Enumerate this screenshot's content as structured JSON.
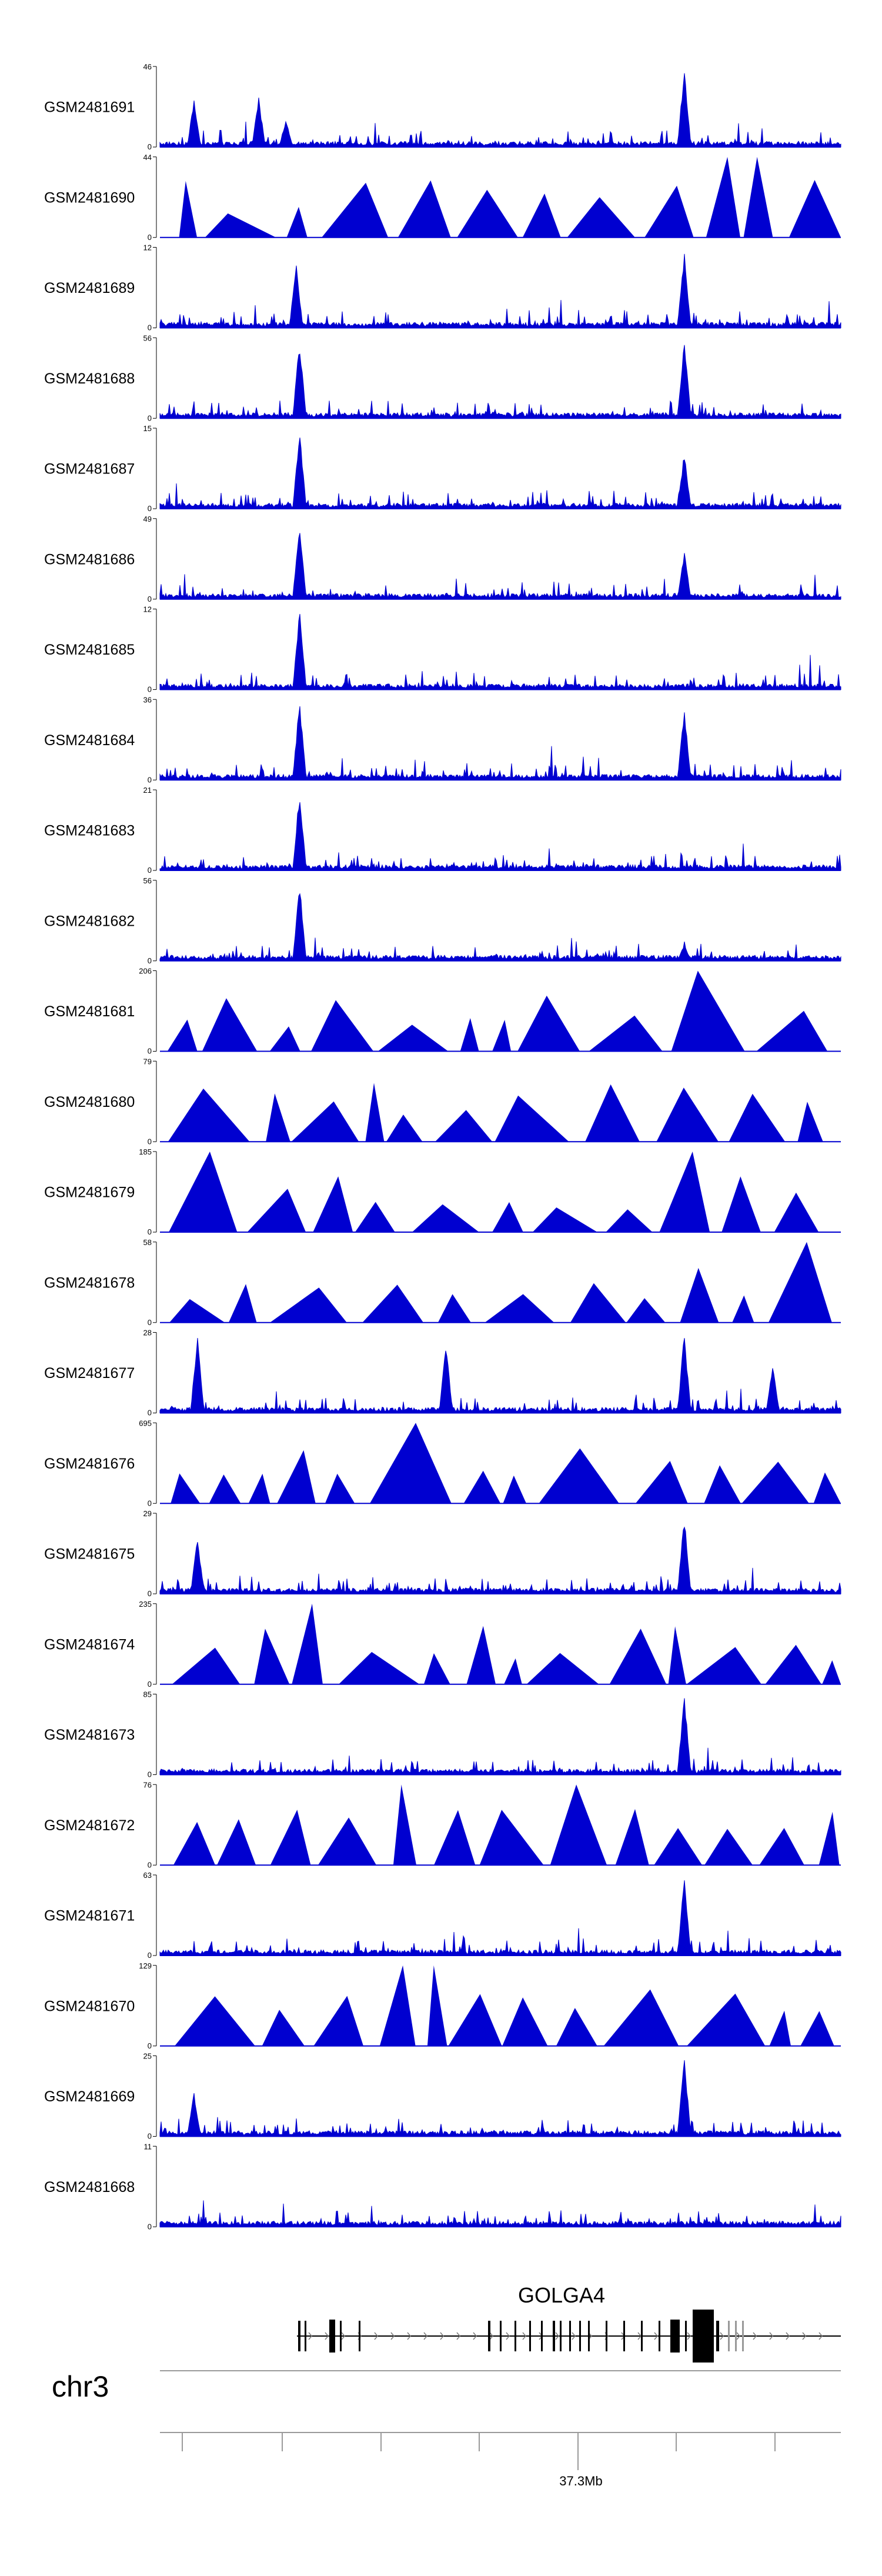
{
  "chart_data": {
    "type": "area",
    "title": "",
    "track_color": "#0000d0",
    "tracks": [
      {
        "name": "GSM2481691",
        "ymax": 46,
        "ymin": 0,
        "style": "signal",
        "peaks": [
          {
            "x": 0.05,
            "h": 0.6
          },
          {
            "x": 0.145,
            "h": 0.62
          },
          {
            "x": 0.185,
            "h": 0.35
          },
          {
            "x": 0.77,
            "h": 1.0
          }
        ]
      },
      {
        "name": "GSM2481690",
        "ymax": 44,
        "ymin": 0,
        "style": "triangles",
        "peaks": [
          {
            "x": 0.845,
            "h": 1.0
          }
        ]
      },
      {
        "name": "GSM2481689",
        "ymax": 12,
        "ymin": 0,
        "style": "signal",
        "peaks": [
          {
            "x": 0.2,
            "h": 0.8
          },
          {
            "x": 0.77,
            "h": 0.95
          }
        ]
      },
      {
        "name": "GSM2481688",
        "ymax": 56,
        "ymin": 0,
        "style": "signal",
        "peaks": [
          {
            "x": 0.205,
            "h": 0.98
          },
          {
            "x": 0.77,
            "h": 1.0
          }
        ]
      },
      {
        "name": "GSM2481687",
        "ymax": 15,
        "ymin": 0,
        "style": "signal",
        "peaks": [
          {
            "x": 0.205,
            "h": 1.0
          },
          {
            "x": 0.77,
            "h": 0.7
          }
        ]
      },
      {
        "name": "GSM2481686",
        "ymax": 49,
        "ymin": 0,
        "style": "signal",
        "peaks": [
          {
            "x": 0.205,
            "h": 1.0
          },
          {
            "x": 0.77,
            "h": 0.6
          }
        ]
      },
      {
        "name": "GSM2481685",
        "ymax": 12,
        "ymin": 0,
        "style": "signal",
        "peaks": [
          {
            "x": 0.205,
            "h": 1.0
          }
        ]
      },
      {
        "name": "GSM2481684",
        "ymax": 36,
        "ymin": 0,
        "style": "signal",
        "peaks": [
          {
            "x": 0.205,
            "h": 1.0
          },
          {
            "x": 0.77,
            "h": 0.9
          }
        ]
      },
      {
        "name": "GSM2481683",
        "ymax": 21,
        "ymin": 0,
        "style": "signal",
        "peaks": [
          {
            "x": 0.205,
            "h": 1.0
          }
        ]
      },
      {
        "name": "GSM2481682",
        "ymax": 56,
        "ymin": 0,
        "style": "signal",
        "peaks": [
          {
            "x": 0.205,
            "h": 1.0
          },
          {
            "x": 0.77,
            "h": 0.2
          }
        ]
      },
      {
        "name": "GSM2481681",
        "ymax": 206,
        "ymin": 0,
        "style": "triangles",
        "peaks": [
          {
            "x": 0.77,
            "h": 1.0
          },
          {
            "x": 0.91,
            "h": 0.65
          }
        ]
      },
      {
        "name": "GSM2481680",
        "ymax": 79,
        "ymin": 0,
        "style": "triangles",
        "peaks": [
          {
            "x": 0.615,
            "h": 1.0
          }
        ]
      },
      {
        "name": "GSM2481679",
        "ymax": 185,
        "ymin": 0,
        "style": "triangles",
        "peaks": [
          {
            "x": 0.06,
            "h": 1.0
          },
          {
            "x": 0.77,
            "h": 1.0
          }
        ]
      },
      {
        "name": "GSM2481678",
        "ymax": 58,
        "ymin": 0,
        "style": "triangles",
        "peaks": [
          {
            "x": 0.92,
            "h": 1.0
          },
          {
            "x": 0.945,
            "h": 1.0
          }
        ]
      },
      {
        "name": "GSM2481677",
        "ymax": 28,
        "ymin": 0,
        "style": "signal",
        "peaks": [
          {
            "x": 0.055,
            "h": 1.0
          },
          {
            "x": 0.42,
            "h": 0.9
          },
          {
            "x": 0.77,
            "h": 1.0
          },
          {
            "x": 0.9,
            "h": 0.6
          }
        ]
      },
      {
        "name": "GSM2481676",
        "ymax": 695,
        "ymin": 0,
        "style": "triangles",
        "peaks": [
          {
            "x": 0.41,
            "h": 1.0
          }
        ]
      },
      {
        "name": "GSM2481675",
        "ymax": 29,
        "ymin": 0,
        "style": "signal",
        "peaks": [
          {
            "x": 0.055,
            "h": 0.7
          },
          {
            "x": 0.77,
            "h": 1.0
          }
        ]
      },
      {
        "name": "GSM2481674",
        "ymax": 235,
        "ymin": 0,
        "style": "triangles",
        "peaks": [
          {
            "x": 0.22,
            "h": 1.0
          }
        ]
      },
      {
        "name": "GSM2481673",
        "ymax": 85,
        "ymin": 0,
        "style": "signal",
        "peaks": [
          {
            "x": 0.77,
            "h": 1.0
          }
        ]
      },
      {
        "name": "GSM2481672",
        "ymax": 76,
        "ymin": 0,
        "style": "triangles",
        "peaks": [
          {
            "x": 0.385,
            "h": 1.0
          },
          {
            "x": 0.59,
            "h": 1.0
          }
        ]
      },
      {
        "name": "GSM2481671",
        "ymax": 63,
        "ymin": 0,
        "style": "signal",
        "peaks": [
          {
            "x": 0.77,
            "h": 1.0
          }
        ]
      },
      {
        "name": "GSM2481670",
        "ymax": 129,
        "ymin": 0,
        "style": "triangles",
        "peaks": [
          {
            "x": 0.385,
            "h": 1.0
          }
        ]
      },
      {
        "name": "GSM2481669",
        "ymax": 25,
        "ymin": 0,
        "style": "signal",
        "peaks": [
          {
            "x": 0.05,
            "h": 0.55
          },
          {
            "x": 0.77,
            "h": 1.0
          }
        ]
      },
      {
        "name": "GSM2481668",
        "ymax": 11,
        "ymin": 0,
        "style": "signal",
        "peaks": []
      }
    ],
    "gene": {
      "name": "GOLGA4"
    },
    "chromosome": "chr3",
    "axis": {
      "tick_label": "37.3Mb"
    }
  }
}
